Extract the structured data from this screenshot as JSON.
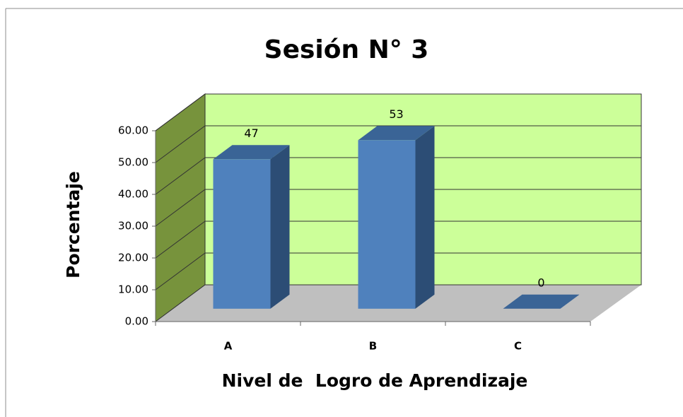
{
  "chart_data": {
    "type": "bar3d",
    "title": "Sesión N° 3",
    "y_label": "Porcentaje",
    "x_label": "Nivel de  Logro de Aprendizaje",
    "categories": [
      "A",
      "B",
      "C"
    ],
    "values": [
      47,
      53,
      0
    ],
    "color": "#4f81bd",
    "ylim": [
      0,
      60
    ],
    "yticks": [
      {
        "value": 0,
        "label": "0.00"
      },
      {
        "value": 10,
        "label": "10.00"
      },
      {
        "value": 20,
        "label": "20.00"
      },
      {
        "value": 30,
        "label": "30.00"
      },
      {
        "value": 40,
        "label": "40.00"
      },
      {
        "value": 50,
        "label": "50.00"
      },
      {
        "value": 60,
        "label": "60.00"
      }
    ],
    "grid": true
  }
}
